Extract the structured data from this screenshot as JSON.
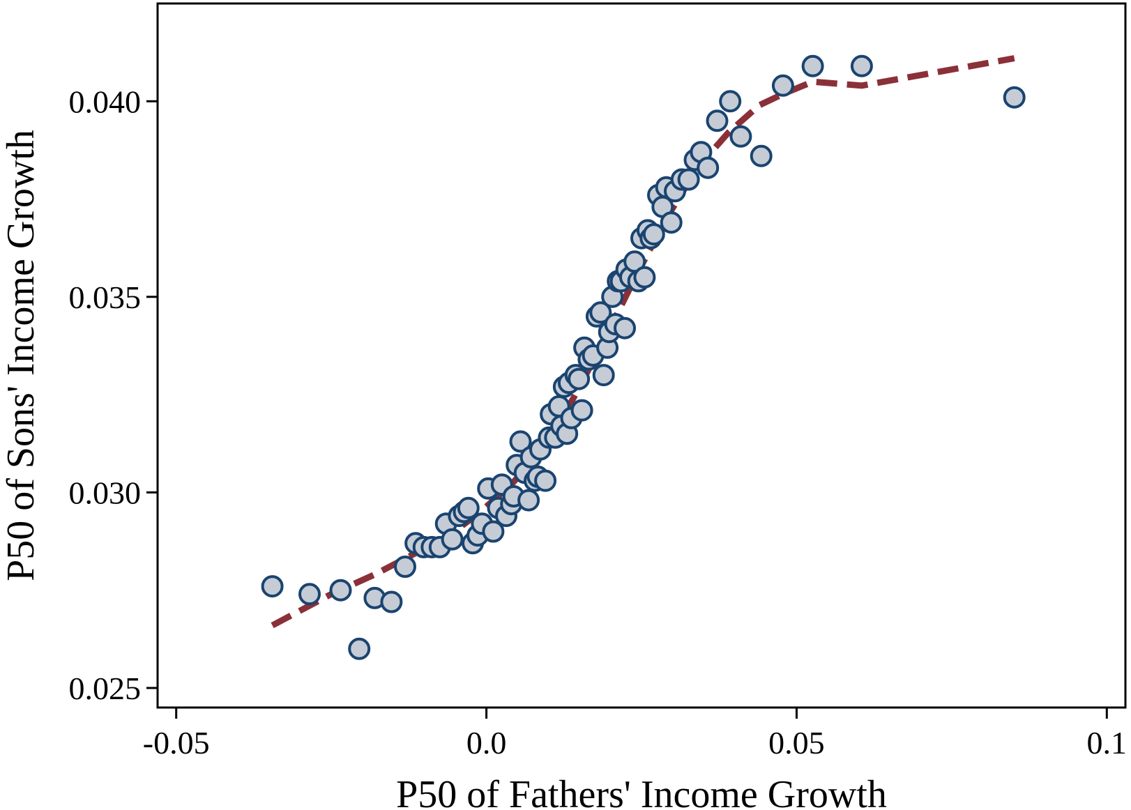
{
  "chart_data": {
    "type": "scatter",
    "xlabel": "P50 of Fathers' Income Growth",
    "ylabel": "P50 of Sons' Income Growth",
    "xlim": [
      -0.053,
      0.103
    ],
    "ylim": [
      0.0245,
      0.0425
    ],
    "x_ticks": [
      -0.05,
      0.0,
      0.05,
      0.1
    ],
    "x_tick_labels": [
      "-0.05",
      "0.0",
      "0.05",
      "0.1"
    ],
    "y_ticks": [
      0.025,
      0.03,
      0.035,
      0.04
    ],
    "y_tick_labels": [
      "0.025",
      "0.030",
      "0.035",
      "0.040"
    ],
    "grid": true,
    "colors": {
      "marker_fill": "#c5ccd6",
      "marker_edge": "#1a4470",
      "fit_line": "#8b3038",
      "grid": "#e6eff0"
    },
    "series": [
      {
        "kind": "points",
        "x": [
          -0.0345,
          -0.0285,
          -0.0235,
          -0.0205,
          -0.018,
          -0.0153,
          -0.0131,
          -0.0114,
          -0.0101,
          -0.0088,
          -0.0075,
          -0.0065,
          -0.0055,
          -0.0044,
          -0.0036,
          -0.0029,
          -0.0022,
          -0.0014,
          -0.0007,
          0.0003,
          0.0011,
          0.0019,
          0.0025,
          0.0032,
          0.004,
          0.0044,
          0.0049,
          0.0055,
          0.0062,
          0.0068,
          0.0072,
          0.0078,
          0.0083,
          0.0087,
          0.0095,
          0.0101,
          0.0104,
          0.0111,
          0.0117,
          0.0121,
          0.0125,
          0.013,
          0.0133,
          0.0137,
          0.0144,
          0.0149,
          0.0154,
          0.0158,
          0.0165,
          0.0172,
          0.0178,
          0.0184,
          0.0189,
          0.0195,
          0.0198,
          0.0203,
          0.0208,
          0.0212,
          0.0217,
          0.0223,
          0.0226,
          0.0232,
          0.0239,
          0.0245,
          0.025,
          0.0255,
          0.026,
          0.0265,
          0.027,
          0.0277,
          0.0284,
          0.029,
          0.0298,
          0.0304,
          0.0315,
          0.0326,
          0.0336,
          0.0346,
          0.0357,
          0.0372,
          0.0393,
          0.041,
          0.0443,
          0.0478,
          0.0526,
          0.0605,
          0.0851
        ],
        "y": [
          0.0276,
          0.0274,
          0.0275,
          0.026,
          0.0273,
          0.0272,
          0.0281,
          0.0287,
          0.0286,
          0.0286,
          0.0286,
          0.0292,
          0.0288,
          0.0294,
          0.0295,
          0.0296,
          0.0287,
          0.0289,
          0.0292,
          0.0301,
          0.029,
          0.0296,
          0.0302,
          0.0294,
          0.0297,
          0.0299,
          0.0307,
          0.0313,
          0.0305,
          0.0298,
          0.0309,
          0.0303,
          0.0304,
          0.0311,
          0.0303,
          0.0314,
          0.032,
          0.0314,
          0.0322,
          0.0317,
          0.0327,
          0.0315,
          0.0328,
          0.0319,
          0.033,
          0.0329,
          0.0321,
          0.0337,
          0.0334,
          0.0335,
          0.0345,
          0.0346,
          0.033,
          0.0337,
          0.0341,
          0.035,
          0.0343,
          0.0354,
          0.0354,
          0.0342,
          0.0357,
          0.0355,
          0.0359,
          0.0354,
          0.0365,
          0.0355,
          0.0367,
          0.0365,
          0.0366,
          0.0376,
          0.0373,
          0.0378,
          0.0369,
          0.0377,
          0.038,
          0.038,
          0.0385,
          0.0387,
          0.0383,
          0.0395,
          0.04,
          0.0391,
          0.0386,
          0.0404,
          0.0409,
          0.0409,
          0.0401
        ]
      },
      {
        "kind": "fit",
        "x": [
          -0.0345,
          -0.025,
          -0.018,
          -0.012,
          -0.006,
          -0.001,
          0.004,
          0.009,
          0.014,
          0.019,
          0.024,
          0.029,
          0.034,
          0.039,
          0.044,
          0.048,
          0.0526,
          0.0605,
          0.0851
        ],
        "y": [
          0.0266,
          0.0274,
          0.0279,
          0.0284,
          0.0289,
          0.0295,
          0.0302,
          0.0311,
          0.0324,
          0.0339,
          0.0355,
          0.037,
          0.0383,
          0.0392,
          0.0399,
          0.0402,
          0.0405,
          0.0404,
          0.0411
        ]
      }
    ]
  }
}
